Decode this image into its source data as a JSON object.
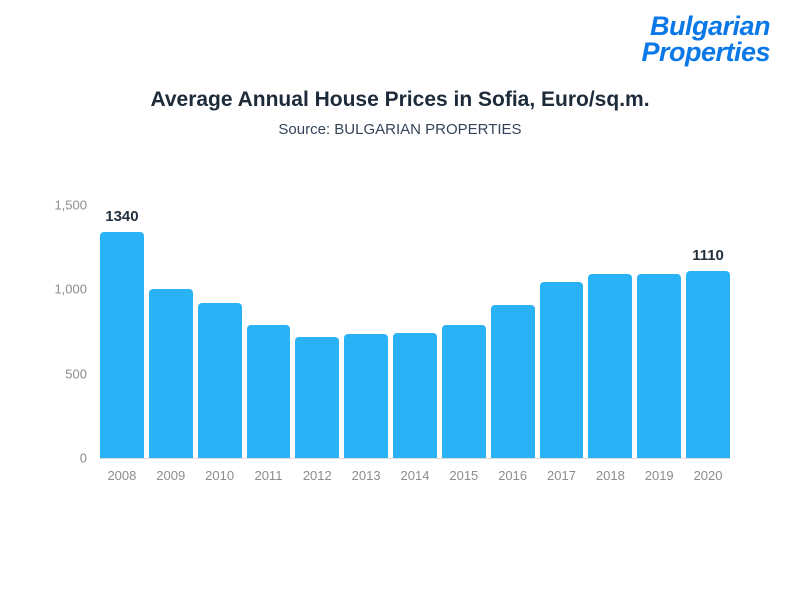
{
  "logo": {
    "line1": "Bulgarian",
    "line2": "Properties"
  },
  "header": {
    "title": "Average Annual House Prices in Sofia, Euro/sq.m.",
    "subtitle": "Source: BULGARIAN PROPERTIES"
  },
  "chart_data": {
    "type": "bar",
    "title": "Average Annual House Prices in Sofia, Euro/sq.m.",
    "subtitle": "Source: BULGARIAN PROPERTIES",
    "categories": [
      "2008",
      "2009",
      "2010",
      "2011",
      "2012",
      "2013",
      "2014",
      "2015",
      "2016",
      "2017",
      "2018",
      "2019",
      "2020"
    ],
    "values": [
      1340,
      1000,
      920,
      790,
      720,
      735,
      740,
      790,
      905,
      1045,
      1090,
      1090,
      1110
    ],
    "point_labels": {
      "0": "1340",
      "12": "1110"
    },
    "xlabel": "",
    "ylabel": "",
    "ylim": [
      0,
      1500
    ],
    "yticks": [
      {
        "value": 0,
        "label": "0"
      },
      {
        "value": 500,
        "label": "500"
      },
      {
        "value": 1000,
        "label": "1,000"
      },
      {
        "value": 1500,
        "label": "1,500"
      }
    ],
    "grid": false,
    "legend": "none"
  },
  "colors": {
    "bar": "#29b2f5",
    "logo_blue": "#0b78e8",
    "title": "#1d2b3a",
    "subtitle": "#34455a",
    "axis_text": "#8d8d8d",
    "label_text": "#22313f",
    "baseline": "#dcdcdc"
  }
}
